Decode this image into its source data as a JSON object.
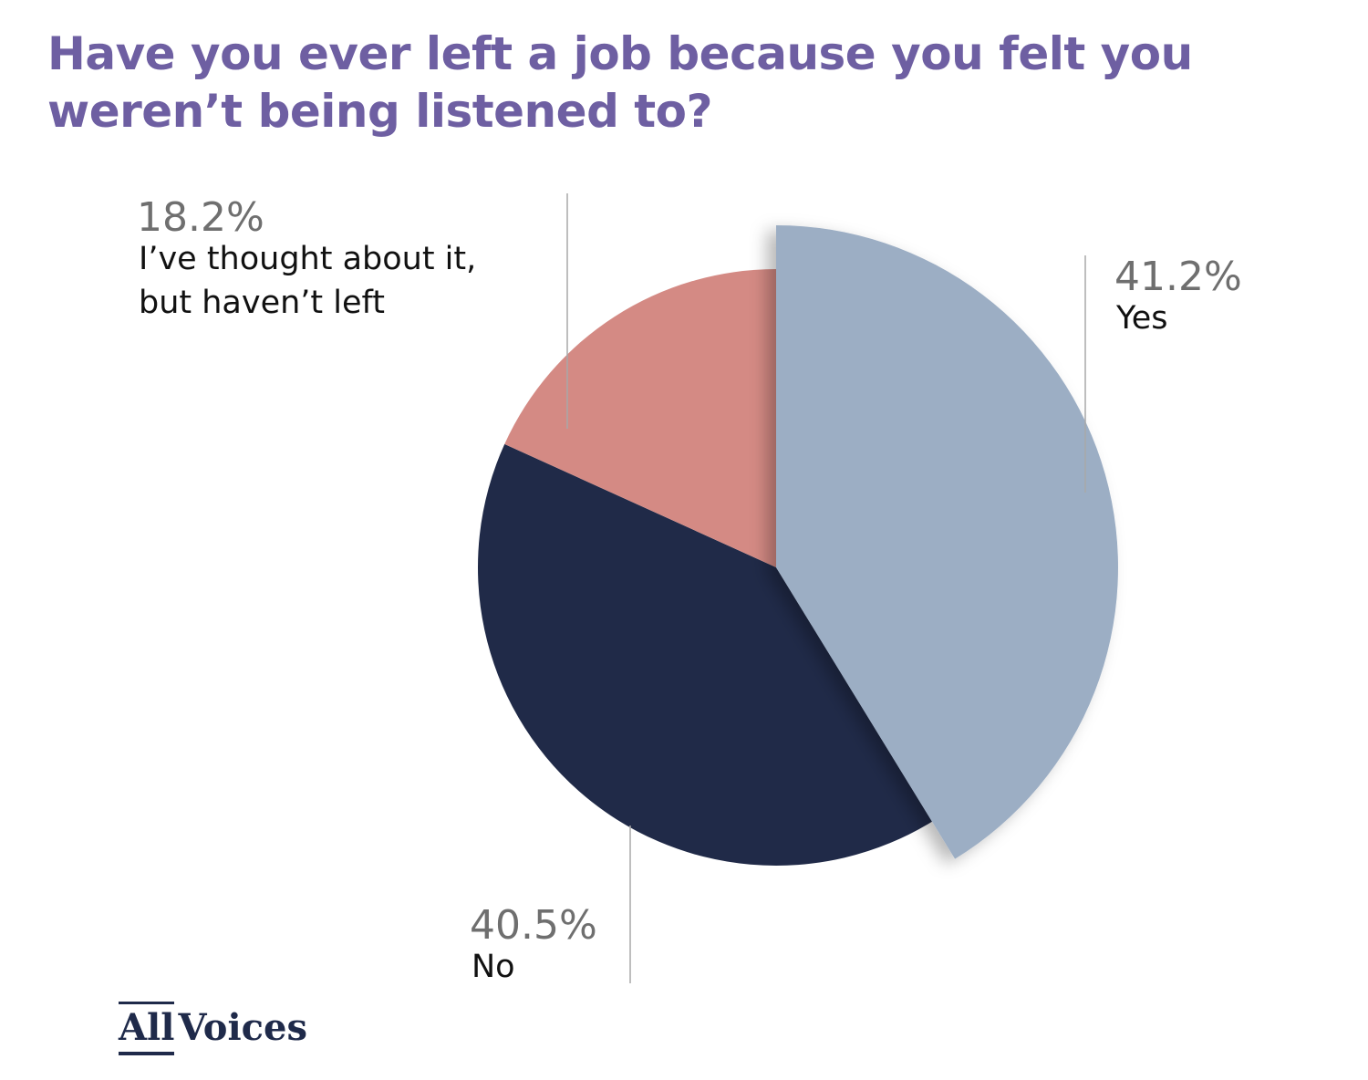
{
  "title_lines": [
    "Have you ever left a job because you felt you",
    "weren’t being listened to?"
  ],
  "brand": {
    "part1": "All",
    "part2": "Voices"
  },
  "colors": {
    "title": "#6e5fa2",
    "yes": "#9caec4",
    "no": "#202a48",
    "thought": "#d48a84"
  },
  "chart_data": {
    "type": "pie",
    "title": "Have you ever left a job because you felt you weren’t being listened to?",
    "slices": [
      {
        "label": "Yes",
        "value": 41.2,
        "value_label": "41.2%",
        "color": "#9caec4",
        "exploded": true
      },
      {
        "label": "No",
        "value": 40.5,
        "value_label": "40.5%",
        "color": "#202a48",
        "exploded": false
      },
      {
        "label_lines": [
          "I’ve thought about it,",
          "but haven’t left"
        ],
        "value": 18.2,
        "value_label": "18.2%",
        "color": "#d48a84",
        "exploded": false
      }
    ],
    "start_angle": "12 o'clock",
    "direction": "clockwise",
    "legend": "none (direct labels)"
  }
}
